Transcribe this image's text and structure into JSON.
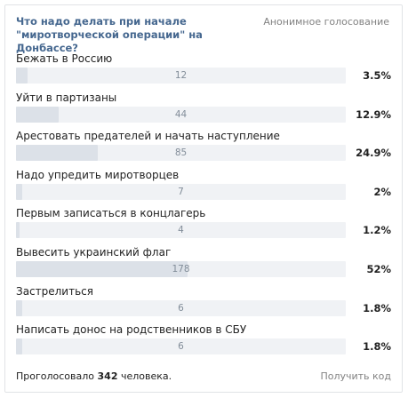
{
  "poll": {
    "question": "Что надо делать при начале \"миротворческой операции\" на Донбассе?",
    "type_label": "Анонимное голосование",
    "options": [
      {
        "label": "Бежать в Россию",
        "count": "12",
        "percent": "3.5%",
        "fraction": 0.035
      },
      {
        "label": "Уйти в партизаны",
        "count": "44",
        "percent": "12.9%",
        "fraction": 0.129
      },
      {
        "label": "Арестовать предателей и начать наступление",
        "count": "85",
        "percent": "24.9%",
        "fraction": 0.249
      },
      {
        "label": "Надо упредить миротворцев",
        "count": "7",
        "percent": "2%",
        "fraction": 0.02
      },
      {
        "label": "Первым записаться в концлагерь",
        "count": "4",
        "percent": "1.2%",
        "fraction": 0.012
      },
      {
        "label": "Вывесить украинский флаг",
        "count": "178",
        "percent": "52%",
        "fraction": 0.52
      },
      {
        "label": "Застрелиться",
        "count": "6",
        "percent": "1.8%",
        "fraction": 0.018
      },
      {
        "label": "Написать донос на родственников в СБУ",
        "count": "6",
        "percent": "1.8%",
        "fraction": 0.018
      }
    ],
    "footer": {
      "voted_prefix": "Проголосовало",
      "voted_count": "342",
      "voted_suffix": "человека.",
      "get_code": "Получить код"
    }
  }
}
